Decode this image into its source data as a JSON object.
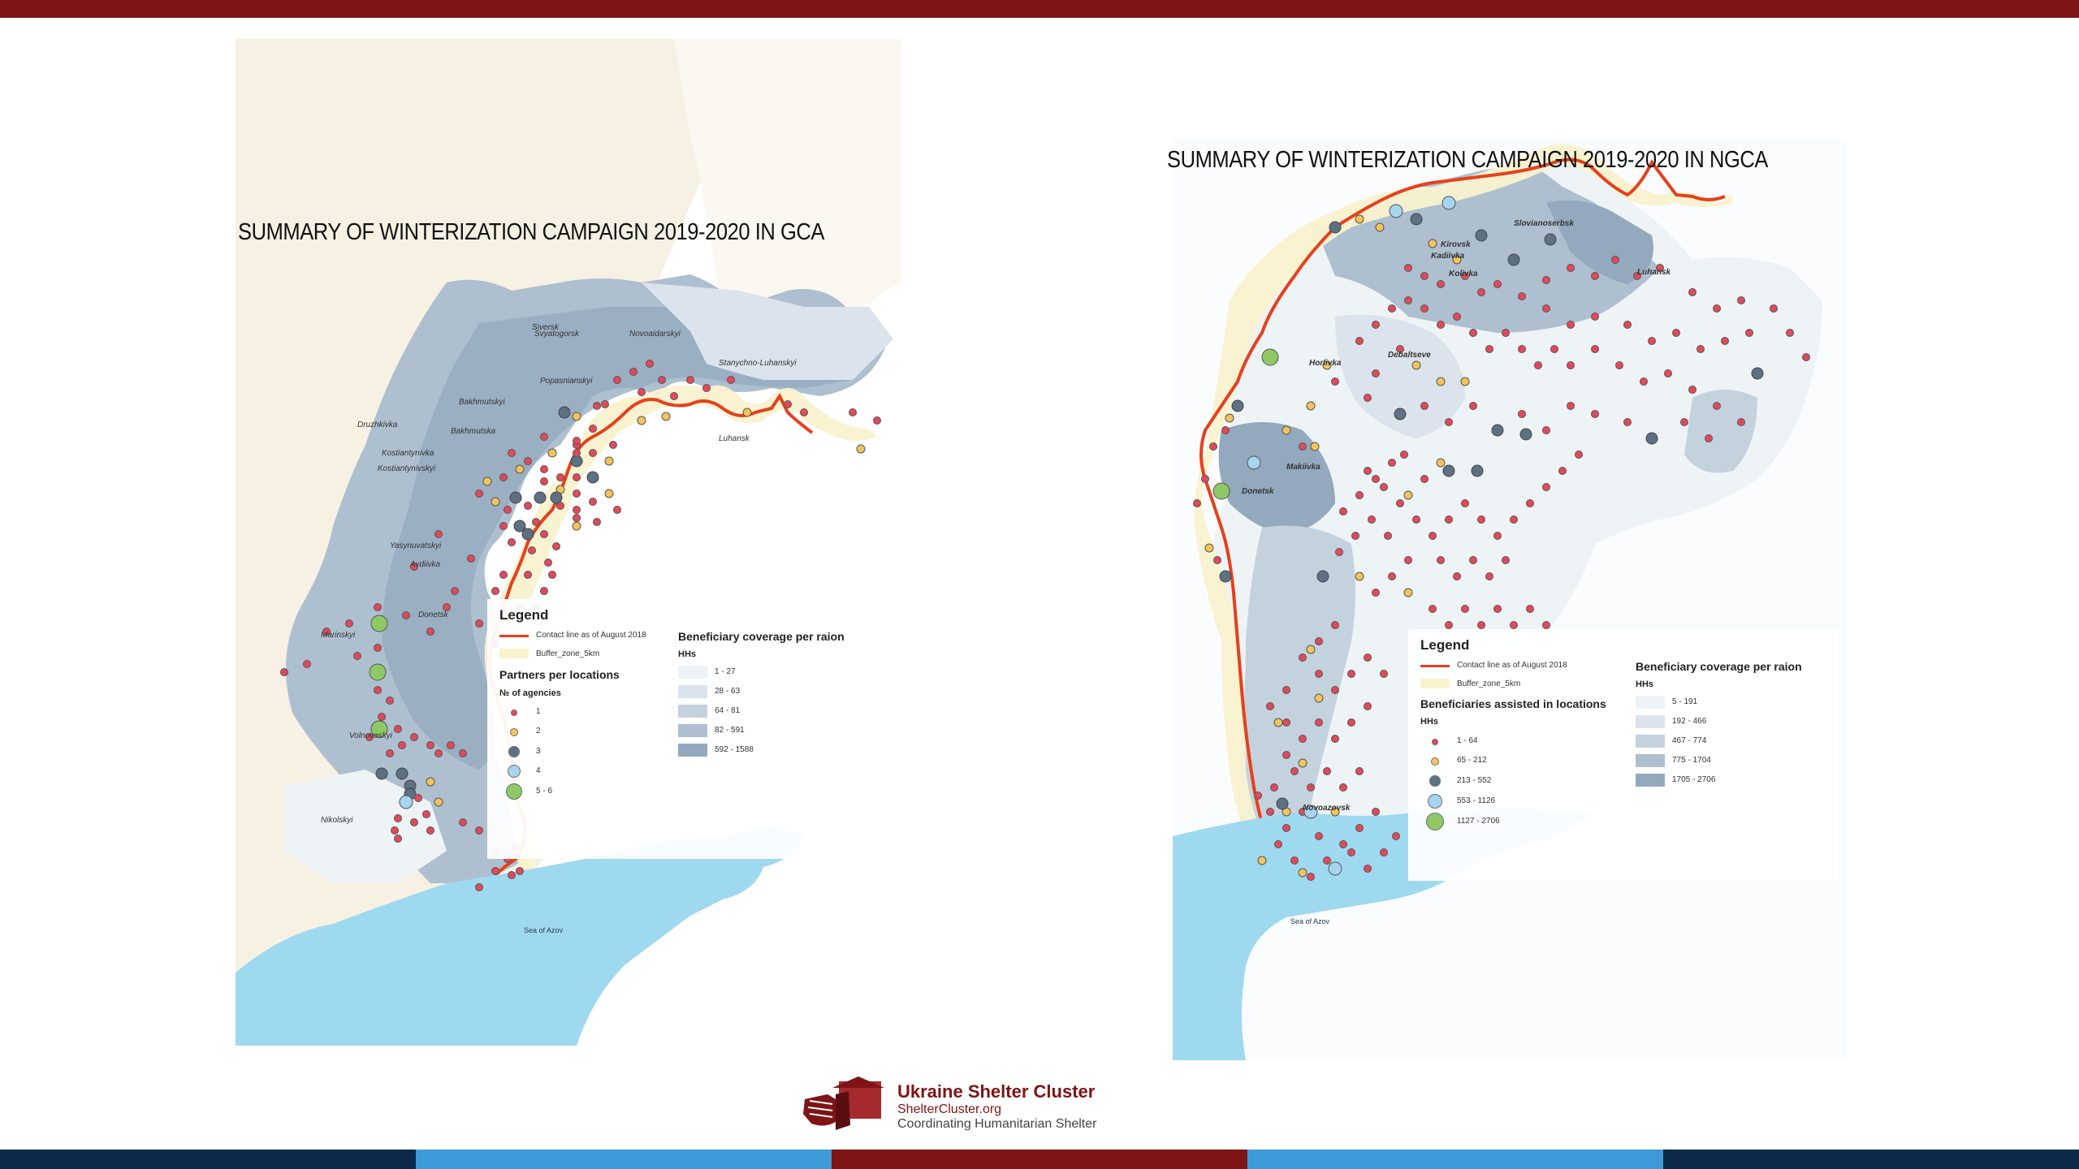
{
  "slide": {
    "colors": {
      "top_bar": "#7e1416",
      "bottom_segments": [
        "#0b2a4a",
        "#3d9ad6",
        "#7e1416",
        "#3d9ad6",
        "#0b2a4a"
      ],
      "contact_line": "#e6401d",
      "sea": "#9fd9f0",
      "buffer_zone": "#f9f2cf"
    }
  },
  "gca": {
    "title": "SUMMARY OF WINTERIZATION CAMPAIGN 2019-2020 IN GCA",
    "places": [
      "Siversk",
      "Svyatogorsk",
      "Novoaidarskyi",
      "Stanychno-Luhanskyi",
      "Popasnianskyi",
      "Bakhmutskyi",
      "Druzhkivka",
      "Bakhmutska",
      "Kostiantynivka",
      "Kostiantynivskyi",
      "Luhansk",
      "Yasynuvatskyi",
      "Avdiivka",
      "Donetsk",
      "Marinskyi",
      "Volnovaskyi",
      "Nikolskyi",
      "Sea of Azov"
    ],
    "legend": {
      "title": "Legend",
      "contact_line": "Contact line as of August 2018",
      "buffer_zone": "Buffer_zone_5km",
      "points_heading": "Partners per locations",
      "points_sub": "№ of agencies",
      "points": [
        {
          "label": "1",
          "color": "#e2495b"
        },
        {
          "label": "2",
          "color": "#f2c45b"
        },
        {
          "label": "3",
          "color": "#5d7183"
        },
        {
          "label": "4",
          "color": "#a7d4ef"
        },
        {
          "label": "5 - 6",
          "color": "#8ec965"
        }
      ],
      "raion_heading": "Beneficiary coverage per raion",
      "raion_sub": "HHs",
      "raion_classes": [
        {
          "label": "1 - 27",
          "color": "#eef3f6"
        },
        {
          "label": "28 - 63",
          "color": "#dbe4ec"
        },
        {
          "label": "64 - 81",
          "color": "#c4d2de"
        },
        {
          "label": "82 - 591",
          "color": "#aebfcf"
        },
        {
          "label": "592 - 1588",
          "color": "#93a9bd"
        }
      ]
    }
  },
  "ngca": {
    "title": "SUMMARY OF WINTERIZATION CAMPAIGN 2019-2020 IN NGCA",
    "places": [
      "Slovianoserbsk",
      "Kirovsk",
      "Kadiivka",
      "Kolivka",
      "Luhansk",
      "Horlivka",
      "Debaltseve",
      "Makiivka",
      "Donetsk",
      "Novoazovsk",
      "Sea of Azov"
    ],
    "legend": {
      "title": "Legend",
      "contact_line": "Contact line as of August 2018",
      "buffer_zone": "Buffer_zone_5km",
      "points_heading": "Beneficiaries assisted in locations",
      "points_sub": "HHs",
      "points": [
        {
          "label": "1 - 64",
          "color": "#e2495b"
        },
        {
          "label": "65 - 212",
          "color": "#f2c45b"
        },
        {
          "label": "213 - 552",
          "color": "#5d7183"
        },
        {
          "label": "553 - 1126",
          "color": "#a7d4ef"
        },
        {
          "label": "1127 - 2706",
          "color": "#8ec965"
        }
      ],
      "raion_heading": "Beneficiary coverage per raion",
      "raion_sub": "HHs",
      "raion_classes": [
        {
          "label": "5 - 191",
          "color": "#eef3f6"
        },
        {
          "label": "192 - 466",
          "color": "#dbe4ec"
        },
        {
          "label": "467 - 774",
          "color": "#c4d2de"
        },
        {
          "label": "775 - 1704",
          "color": "#aebfcf"
        },
        {
          "label": "1705 - 2706",
          "color": "#93a9bd"
        }
      ]
    }
  },
  "logo": {
    "title": "Ukraine Shelter Cluster",
    "url": "ShelterCluster.org",
    "tagline": "Coordinating Humanitarian Shelter"
  }
}
